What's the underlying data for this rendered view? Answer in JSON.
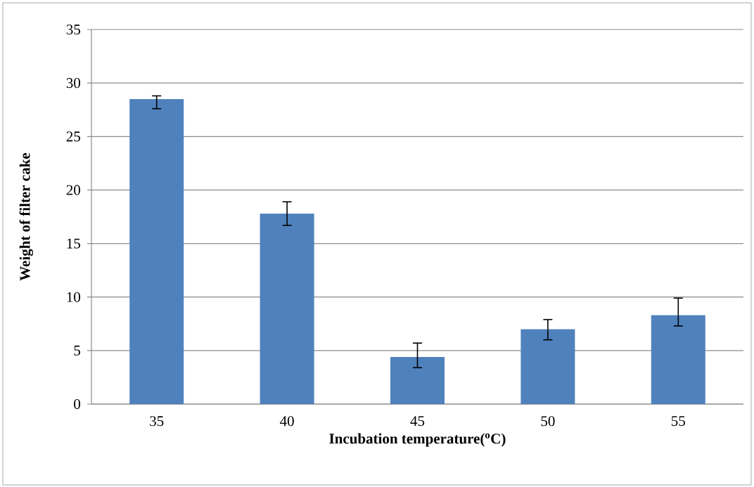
{
  "chart_data": {
    "type": "bar",
    "xlabel": "Incubation temperature($^{o}$C)",
    "ylabel": "Weight of filter cake",
    "categories": [
      "35",
      "40",
      "45",
      "50",
      "55"
    ],
    "values": [
      28.5,
      17.8,
      4.4,
      7.0,
      8.3
    ],
    "errors": [
      [
        27.6,
        28.8
      ],
      [
        16.7,
        18.9
      ],
      [
        3.4,
        5.7
      ],
      [
        6.0,
        7.9
      ],
      [
        7.3,
        9.9
      ]
    ],
    "color": "#4f81bd",
    "ylim": [
      0,
      35
    ],
    "yticks": [
      0,
      5,
      10,
      15,
      20,
      25,
      30,
      35
    ],
    "grid": "y"
  }
}
